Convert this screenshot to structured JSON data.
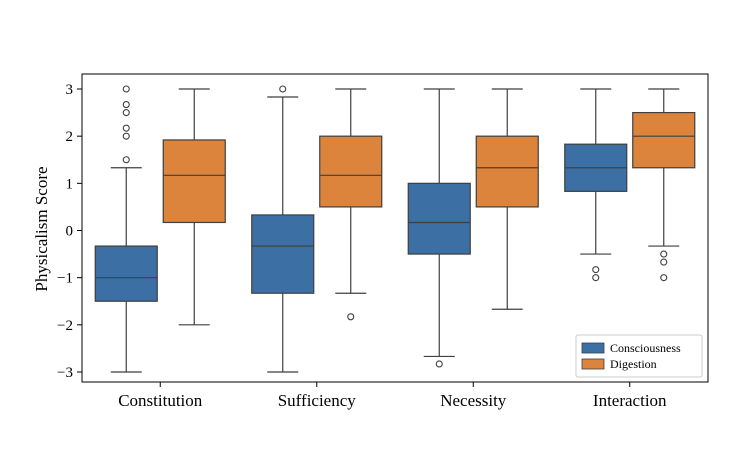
{
  "chart_data": {
    "type": "box",
    "ylabel": "Physicalism Score",
    "xlabel": "",
    "title": "",
    "categories": [
      "Constitution",
      "Sufficiency",
      "Necessity",
      "Interaction"
    ],
    "ylim": [
      -3.3,
      3.3
    ],
    "yticks": [
      3,
      2,
      1,
      0,
      -1,
      -2,
      -3
    ],
    "ytick_labels": [
      "3",
      "2",
      "1",
      "0",
      "−1",
      "−2",
      "−3"
    ],
    "legend": {
      "position": "lower-right",
      "entries": [
        "Consciousness",
        "Digestion"
      ]
    },
    "grid": false,
    "series": [
      {
        "name": "Consciousness",
        "color": "#3c6fa4",
        "boxes": [
          {
            "category": "Constitution",
            "whisker_low": -3.0,
            "q1": -1.5,
            "median": -1.0,
            "q3": -0.33,
            "whisker_high": 1.33,
            "outliers": [
              1.5,
              2.0,
              2.17,
              2.5,
              2.67,
              3.0
            ]
          },
          {
            "category": "Sufficiency",
            "whisker_low": -3.0,
            "q1": -1.33,
            "median": -0.33,
            "q3": 0.33,
            "whisker_high": 2.83,
            "outliers": [
              3.0
            ]
          },
          {
            "category": "Necessity",
            "whisker_low": -2.67,
            "q1": -0.5,
            "median": 0.17,
            "q3": 1.0,
            "whisker_high": 3.0,
            "outliers": [
              -2.83
            ]
          },
          {
            "category": "Interaction",
            "whisker_low": -0.5,
            "q1": 0.83,
            "median": 1.33,
            "q3": 1.83,
            "whisker_high": 3.0,
            "outliers": [
              -0.83,
              -1.0
            ]
          }
        ]
      },
      {
        "name": "Digestion",
        "color": "#dd843c",
        "boxes": [
          {
            "category": "Constitution",
            "whisker_low": -2.0,
            "q1": 0.17,
            "median": 1.17,
            "q3": 1.92,
            "whisker_high": 3.0,
            "outliers": []
          },
          {
            "category": "Sufficiency",
            "whisker_low": -1.33,
            "q1": 0.5,
            "median": 1.17,
            "q3": 2.0,
            "whisker_high": 3.0,
            "outliers": [
              -1.83
            ]
          },
          {
            "category": "Necessity",
            "whisker_low": -1.67,
            "q1": 0.5,
            "median": 1.33,
            "q3": 2.0,
            "whisker_high": 3.0,
            "outliers": []
          },
          {
            "category": "Interaction",
            "whisker_low": -0.33,
            "q1": 1.33,
            "median": 2.0,
            "q3": 2.5,
            "whisker_high": 3.0,
            "outliers": [
              -0.5,
              -0.67,
              -1.0
            ]
          }
        ]
      }
    ]
  }
}
